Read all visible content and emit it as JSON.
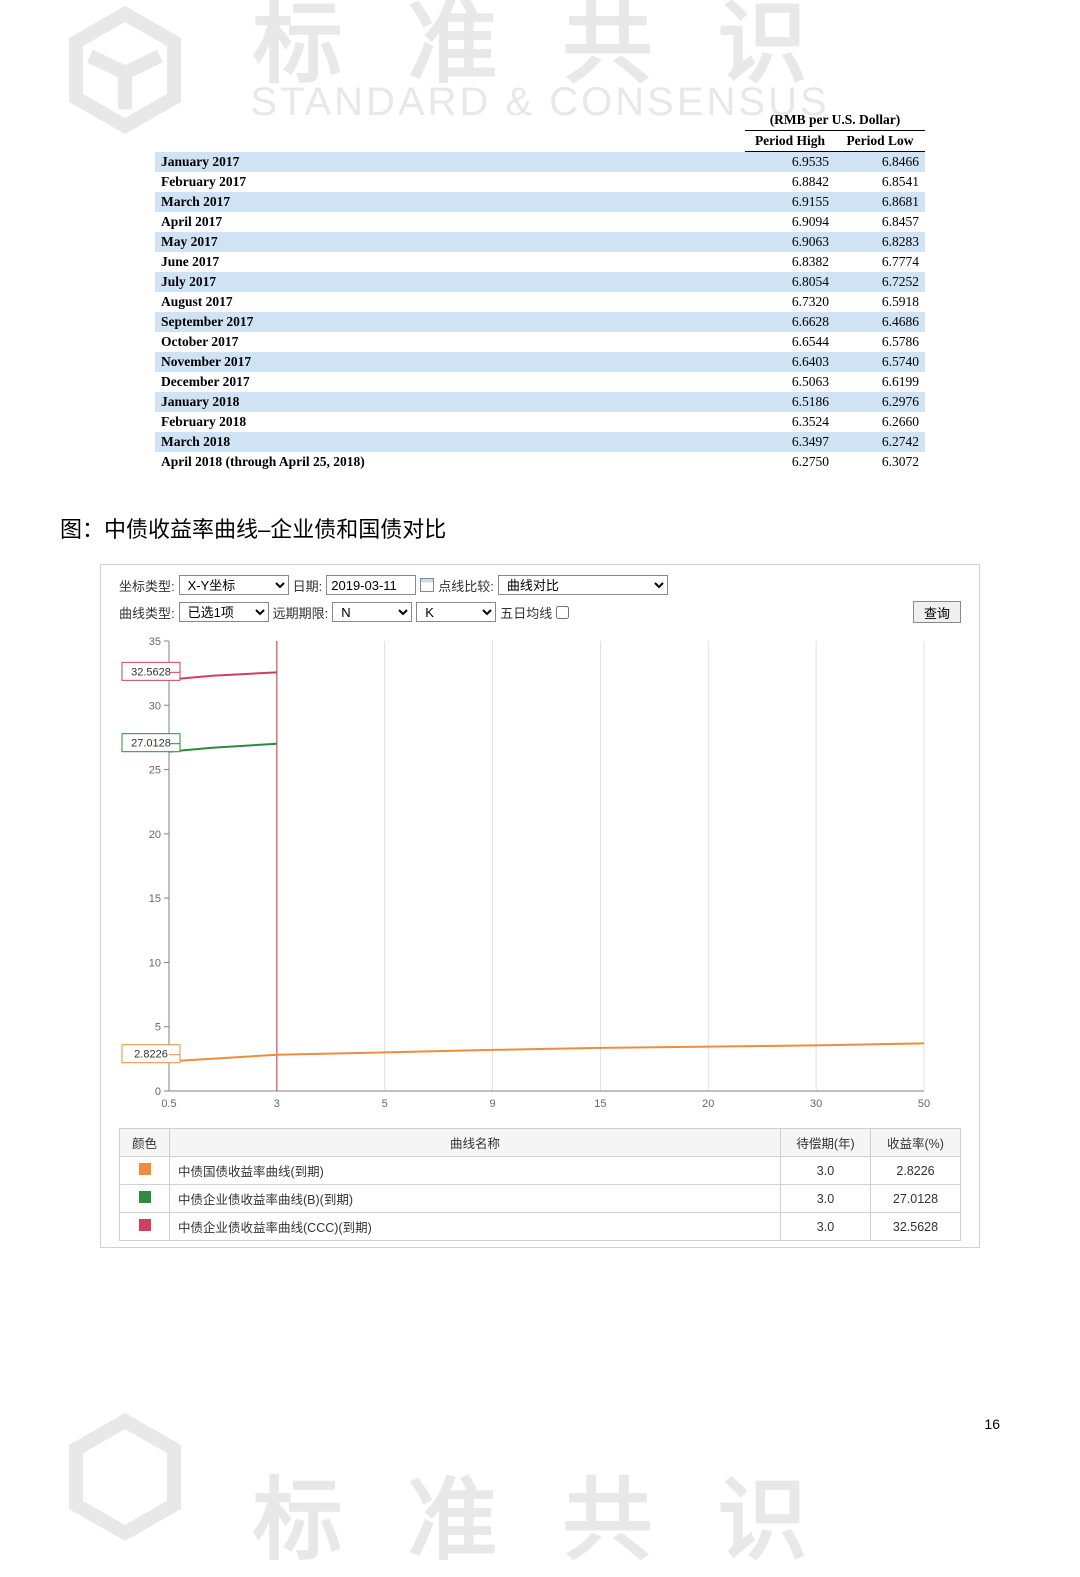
{
  "watermark": {
    "cn_top": "标 准 共 识",
    "en_top": "STANDARD & CONSENSUS",
    "cn_bottom": "标 准 共 识"
  },
  "rmb_table": {
    "caption": "(RMB per U.S. Dollar)",
    "col_high": "Period High",
    "col_low": "Period Low",
    "rows": [
      {
        "label": "January 2017",
        "high": "6.9535",
        "low": "6.8466"
      },
      {
        "label": "February 2017",
        "high": "6.8842",
        "low": "6.8541"
      },
      {
        "label": "March 2017",
        "high": "6.9155",
        "low": "6.8681"
      },
      {
        "label": "April 2017",
        "high": "6.9094",
        "low": "6.8457"
      },
      {
        "label": "May 2017",
        "high": "6.9063",
        "low": "6.8283"
      },
      {
        "label": "June 2017",
        "high": "6.8382",
        "low": "6.7774"
      },
      {
        "label": "July 2017",
        "high": "6.8054",
        "low": "6.7252"
      },
      {
        "label": "August 2017",
        "high": "6.7320",
        "low": "6.5918"
      },
      {
        "label": "September 2017",
        "high": "6.6628",
        "low": "6.4686"
      },
      {
        "label": "October 2017",
        "high": "6.6544",
        "low": "6.5786"
      },
      {
        "label": "November 2017",
        "high": "6.6403",
        "low": "6.5740"
      },
      {
        "label": "December 2017",
        "high": "6.5063",
        "low": "6.6199"
      },
      {
        "label": "January 2018",
        "high": "6.5186",
        "low": "6.2976"
      },
      {
        "label": "February 2018",
        "high": "6.3524",
        "low": "6.2660"
      },
      {
        "label": "March 2018",
        "high": "6.3497",
        "low": "6.2742"
      },
      {
        "label": "April 2018 (through April 25, 2018)",
        "high": "6.2750",
        "low": "6.3072"
      }
    ],
    "band_color": "#cfe3f5"
  },
  "section_title": "图：中债收益率曲线–企业债和国债对比",
  "chart": {
    "controls": {
      "coord_label": "坐标类型:",
      "coord_value": "X-Y坐标",
      "date_label": "日期:",
      "date_value": "2019-03-11",
      "compare_label": "点线比较:",
      "compare_value": "曲线对比",
      "curve_type_label": "曲线类型:",
      "curve_type_value": "已选1项",
      "forward_label": "远期期限:",
      "forward_n": "N",
      "forward_k": "K",
      "ma5_label": "五日均线",
      "query_btn": "查询"
    },
    "plot": {
      "ylim": [
        0,
        35
      ],
      "yticks": [
        0,
        5,
        10,
        15,
        20,
        25,
        30,
        35
      ],
      "xticks": [
        0.5,
        3,
        5,
        9,
        15,
        20,
        30,
        50
      ],
      "callouts": [
        {
          "value": "32.5628",
          "y": 32.5628,
          "color": "#d23f5d"
        },
        {
          "value": "27.0128",
          "y": 27.0128,
          "color": "#2e8b3d"
        },
        {
          "value": "2.8226",
          "y": 2.8226,
          "color": "#f08c3a"
        }
      ],
      "vline_x": 3,
      "series": [
        {
          "name": "treasury",
          "color": "#f08c3a",
          "points": [
            [
              0.5,
              2.3
            ],
            [
              3,
              2.82
            ],
            [
              5,
              3.0
            ],
            [
              9,
              3.2
            ],
            [
              15,
              3.35
            ],
            [
              20,
              3.45
            ],
            [
              30,
              3.55
            ],
            [
              50,
              3.7
            ]
          ]
        },
        {
          "name": "corpB",
          "color": "#2e8b3d",
          "points": [
            [
              0.5,
              26.4
            ],
            [
              1.5,
              26.7
            ],
            [
              3,
              27.01
            ]
          ]
        },
        {
          "name": "corpCCC",
          "color": "#d23f5d",
          "points": [
            [
              0.5,
              32.0
            ],
            [
              1.5,
              32.3
            ],
            [
              3,
              32.56
            ]
          ]
        }
      ],
      "grid_color": "#e0e0e0",
      "axis_color": "#808080",
      "label_fontsize": 11
    },
    "legend": {
      "columns": [
        "颜色",
        "曲线名称",
        "待偿期(年)",
        "收益率(%)"
      ],
      "rows": [
        {
          "color": "#f08c3a",
          "name": "中债国债收益率曲线(到期)",
          "term": "3.0",
          "yield": "2.8226"
        },
        {
          "color": "#2e8b3d",
          "name": "中债企业债收益率曲线(B)(到期)",
          "term": "3.0",
          "yield": "27.0128"
        },
        {
          "color": "#d23f5d",
          "name": "中债企业债收益率曲线(CCC)(到期)",
          "term": "3.0",
          "yield": "32.5628"
        }
      ]
    }
  },
  "page_number": "16"
}
